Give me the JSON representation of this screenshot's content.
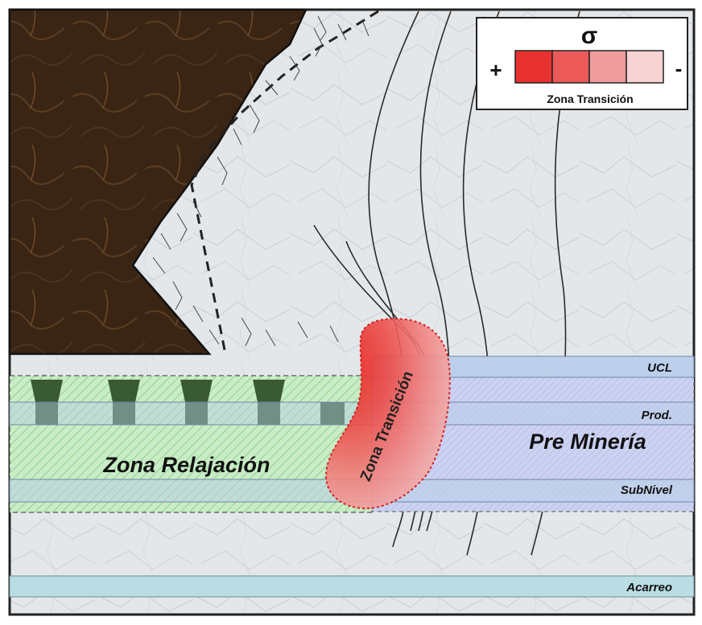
{
  "legend": {
    "symbol": "σ",
    "plus": "+",
    "minus": "-",
    "caption": "Zona Transición",
    "swatch_colors": [
      "#e8312e",
      "#ec5a5a",
      "#f09c9c",
      "#f7d3d3"
    ]
  },
  "levels": {
    "ucl": "UCL",
    "prod": "Prod.",
    "subnivel": "SubNivel",
    "acarreo": "Acarreo"
  },
  "zones": {
    "relajacion": "Zona Relajación",
    "pre_mineria": "Pre Minería",
    "transicion": "Zona Transición"
  },
  "colors": {
    "broken_ore": "#3b2415",
    "rock_mass": "#e4e7ea",
    "relaxation_zone": "#bfe8bf",
    "pre_mining_zone": "#c7cff0",
    "level_band": "#b8cfe8",
    "haulage_band": "#b9dde3",
    "transition_zone": "#e8312e"
  }
}
